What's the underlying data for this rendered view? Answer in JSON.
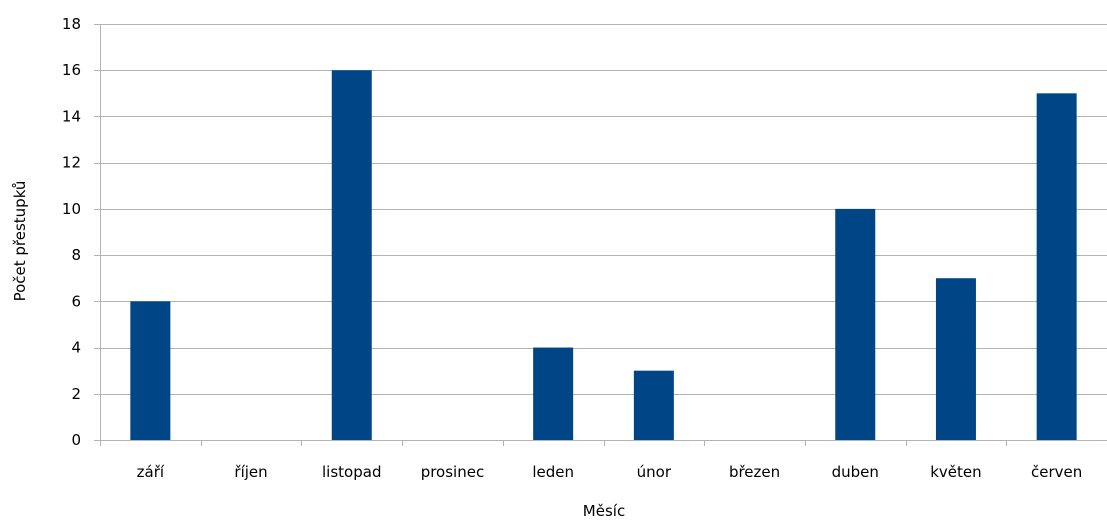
{
  "chart_data": {
    "type": "bar",
    "categories": [
      "září",
      "říjen",
      "listopad",
      "prosinec",
      "leden",
      "únor",
      "březen",
      "duben",
      "květen",
      "červen"
    ],
    "values": [
      6,
      0,
      16,
      0,
      4,
      3,
      0,
      10,
      7,
      15
    ],
    "xlabel": "Měsíc",
    "ylabel": "Počet přestupků",
    "ylim": [
      0,
      18
    ],
    "yticks": [
      0,
      2,
      4,
      6,
      8,
      10,
      12,
      14,
      16,
      18
    ],
    "grid": true,
    "legend": "none"
  },
  "colors": {
    "bar": "#004586",
    "grid": "#b3b3b3",
    "axis": "#b3b3b3"
  }
}
